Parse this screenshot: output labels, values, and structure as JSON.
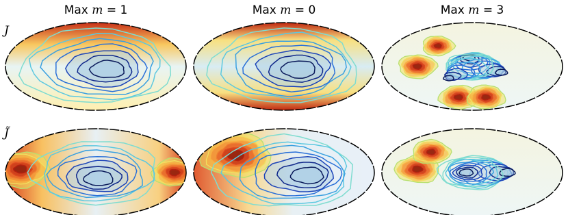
{
  "columns": [
    {
      "label": "Max",
      "var": "m",
      "eq": "= 1"
    },
    {
      "label": "Max",
      "var": "m",
      "eq": "= 0"
    },
    {
      "label": "Max",
      "var": "m",
      "eq": "= 3"
    }
  ],
  "rows": [
    {
      "label": "J"
    },
    {
      "label": "J̃"
    }
  ]
}
